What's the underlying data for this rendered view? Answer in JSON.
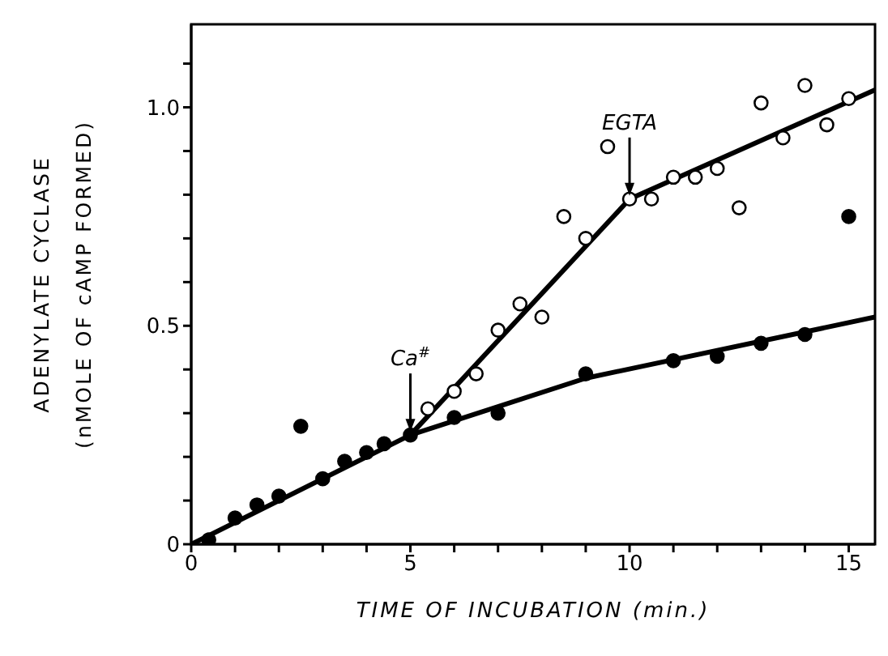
{
  "chart_data": {
    "type": "scatter",
    "xlabel": "TIME OF INCUBATION (min.)",
    "ylabel": "ADENYLATE CYCLASE\n(nMOLE OF cAMP FORMED)",
    "xlim": [
      0,
      15.6
    ],
    "ylim": [
      0,
      1.19
    ],
    "xticks": [
      0,
      {
        "value": 1,
        "label": null
      },
      {
        "value": 2,
        "label": null
      },
      {
        "value": 3,
        "label": null
      },
      {
        "value": 4,
        "label": null
      },
      5,
      {
        "value": 6,
        "label": null
      },
      {
        "value": 7,
        "label": null
      },
      {
        "value": 8,
        "label": null
      },
      {
        "value": 9,
        "label": null
      },
      10,
      {
        "value": 11,
        "label": null
      },
      {
        "value": 12,
        "label": null
      },
      {
        "value": 13,
        "label": null
      },
      {
        "value": 14,
        "label": null
      },
      15
    ],
    "yticks": [
      0,
      {
        "value": 0.1,
        "label": null
      },
      {
        "value": 0.2,
        "label": null
      },
      {
        "value": 0.3,
        "label": null
      },
      {
        "value": 0.4,
        "label": null
      },
      0.5,
      {
        "value": 0.6,
        "label": null
      },
      {
        "value": 0.7,
        "label": null
      },
      {
        "value": 0.8,
        "label": null
      },
      {
        "value": 0.9,
        "label": null
      },
      {
        "value": 1,
        "label": "1.0"
      },
      {
        "value": 1.1,
        "label": null
      }
    ],
    "grid": false,
    "legend": false,
    "marker": "circle",
    "annotations": [
      {
        "text": "Ca$^{#}$",
        "x": 5,
        "y": 0.25
      },
      {
        "text": "EGTA",
        "x": 10,
        "y": 0.79
      }
    ],
    "series": [
      {
        "color": "#000000",
        "x": [
          0.4,
          1.0,
          1.5,
          2.0,
          2.5,
          3.0,
          3.5,
          4.0,
          4.4,
          5.0,
          6.0,
          7.0,
          9.0,
          11.0,
          12.0,
          13.0,
          14.0,
          15.0
        ],
        "values": [
          0.01,
          0.06,
          0.09,
          0.11,
          0.27,
          0.15,
          0.19,
          0.21,
          0.23,
          0.25,
          0.29,
          0.3,
          0.39,
          0.42,
          0.43,
          0.46,
          0.48,
          0.75
        ]
      },
      {
        "color": "#ffffff",
        "x": [
          5.4,
          6.0,
          6.5,
          7.0,
          7.5,
          8.0,
          8.5,
          9.0,
          9.5,
          10.0,
          10.5,
          11.0,
          11.5,
          12.0,
          12.5,
          13.0,
          13.5,
          14.0,
          14.5,
          15.0
        ],
        "values": [
          0.31,
          0.35,
          0.39,
          0.49,
          0.55,
          0.52,
          0.75,
          0.7,
          0.91,
          0.79,
          0.79,
          0.84,
          0.84,
          0.86,
          0.77,
          1.01,
          0.93,
          1.05,
          0.96,
          1.02
        ]
      },
      {
        "type": "line",
        "color": "#000000",
        "marker": "none",
        "x": [
          0,
          5,
          9,
          15.6
        ],
        "values": [
          0,
          0.25,
          0.38,
          0.52
        ]
      },
      {
        "type": "line",
        "color": "#000000",
        "marker": "none",
        "x": [
          5,
          10,
          15.6
        ],
        "values": [
          0.25,
          0.79,
          1.04
        ]
      }
    ]
  }
}
